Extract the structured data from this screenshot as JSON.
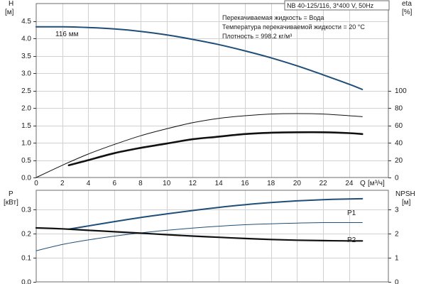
{
  "chart_data": [
    {
      "type": "line",
      "title": "NB 40-125/116, 3*400 V, 50Hz",
      "annotations": [
        "Перекачиваемая жидкость = Вода",
        "Температура перекачиваемой жидкости = 20 °C",
        "Плотность = 998.2 кг/м³"
      ],
      "left_axis": {
        "label": "H",
        "unit": "[м]",
        "range": [
          0,
          5
        ],
        "ticks": [
          0,
          0.5,
          1.0,
          1.5,
          2.0,
          2.5,
          3.0,
          3.5,
          4.0,
          4.5
        ],
        "tick_labels": [
          "0.0",
          "0.5",
          "1.0",
          "1.5",
          "2.0",
          "2.5",
          "3.0",
          "3.5",
          "4.0",
          "4.5"
        ]
      },
      "right_axis": {
        "label": "eta",
        "unit": "[%]",
        "range": [
          0,
          200
        ],
        "ticks": [
          0,
          20,
          40,
          60,
          80,
          100
        ],
        "tick_labels": [
          "0",
          "20",
          "40",
          "60",
          "80",
          "100"
        ]
      },
      "x_axis": {
        "label": "Q",
        "unit": "[м³/ч]",
        "range": [
          0,
          27
        ],
        "ticks": [
          0,
          2,
          4,
          6,
          8,
          10,
          12,
          14,
          16,
          18,
          20,
          22,
          24
        ],
        "tick_labels": [
          "0",
          "2",
          "4",
          "6",
          "8",
          "10",
          "12",
          "14",
          "16",
          "18",
          "20",
          "22",
          "24"
        ]
      },
      "grid": true,
      "series": [
        {
          "name": "116 мм",
          "axis": "left",
          "color": "#1f4e79",
          "width": 2,
          "x": [
            0,
            2,
            4,
            6,
            8,
            10,
            12,
            14,
            16,
            18,
            20,
            22,
            24,
            25
          ],
          "y": [
            4.33,
            4.33,
            4.31,
            4.27,
            4.2,
            4.1,
            3.97,
            3.82,
            3.64,
            3.44,
            3.21,
            2.95,
            2.68,
            2.53
          ]
        },
        {
          "axis": "right",
          "color": "#111111",
          "width": 1,
          "x": [
            0,
            2,
            4,
            6,
            8,
            10,
            12,
            14,
            16,
            18,
            20,
            22,
            24,
            25
          ],
          "y": [
            0,
            14,
            27,
            38,
            48,
            56,
            63,
            68,
            71,
            73,
            73.5,
            73,
            71,
            70
          ]
        },
        {
          "axis": "right",
          "color": "#111111",
          "width": 2.6,
          "x": [
            2.5,
            4,
            6,
            8,
            10,
            12,
            14,
            16,
            18,
            20,
            22,
            24,
            25
          ],
          "y": [
            14,
            20,
            28,
            34,
            39,
            44,
            47,
            50,
            51.5,
            52,
            52,
            51,
            50
          ]
        }
      ]
    },
    {
      "type": "line",
      "left_axis": {
        "label": "P",
        "unit": "[кВт]",
        "range": [
          0,
          0.38
        ],
        "ticks": [
          0,
          0.1,
          0.2,
          0.3
        ],
        "tick_labels": [
          "0.0",
          "0.1",
          "0.2",
          "0.3"
        ]
      },
      "right_axis": {
        "label": "NPSH",
        "unit": "[м]",
        "range": [
          0,
          3.8
        ],
        "ticks": [
          0,
          1,
          2,
          3
        ],
        "tick_labels": [
          "0",
          "1",
          "2",
          "3"
        ]
      },
      "x_axis": {
        "range": [
          0,
          27
        ]
      },
      "grid": true,
      "series": [
        {
          "name": "P1",
          "axis": "left",
          "color": "#1f4e79",
          "width": 2,
          "x": [
            2.5,
            4,
            6,
            8,
            10,
            12,
            14,
            16,
            18,
            20,
            22,
            24,
            25
          ],
          "y": [
            0.219,
            0.232,
            0.25,
            0.267,
            0.282,
            0.296,
            0.309,
            0.32,
            0.329,
            0.336,
            0.341,
            0.344,
            0.345
          ]
        },
        {
          "name": "P2",
          "axis": "left",
          "color": "#1f4e79",
          "width": 1,
          "x": [
            0,
            2,
            4,
            6,
            8,
            10,
            12,
            14,
            16,
            18,
            20,
            22,
            24,
            25
          ],
          "y": [
            0.129,
            0.155,
            0.174,
            0.19,
            0.203,
            0.214,
            0.223,
            0.231,
            0.237,
            0.241,
            0.244,
            0.246,
            0.246,
            0.246
          ]
        },
        {
          "axis": "right",
          "color": "#111111",
          "width": 2.2,
          "x": [
            0,
            2,
            4,
            6,
            8,
            10,
            12,
            14,
            16,
            18,
            20,
            22,
            24,
            25
          ],
          "y": [
            2.24,
            2.2,
            2.14,
            2.08,
            2.02,
            1.96,
            1.9,
            1.85,
            1.8,
            1.76,
            1.73,
            1.71,
            1.7,
            1.7
          ]
        }
      ]
    }
  ]
}
